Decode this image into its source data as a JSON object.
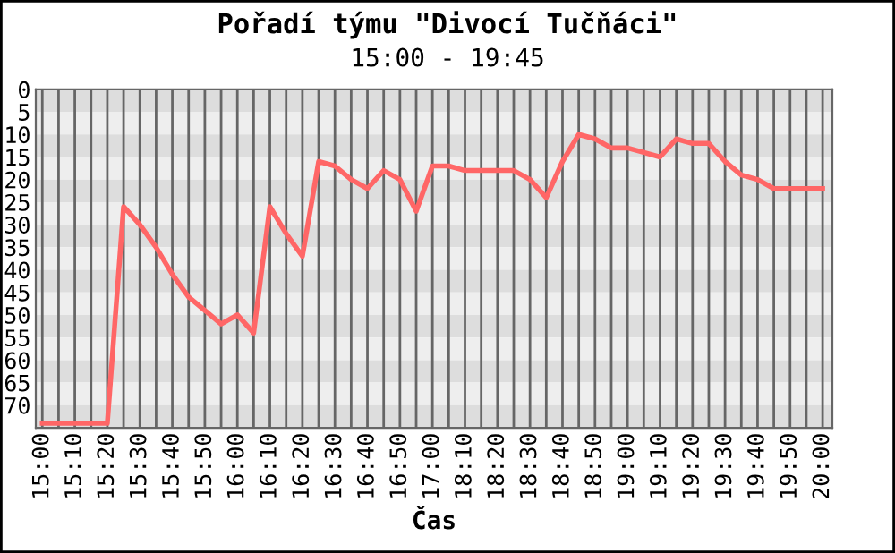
{
  "chart_data": {
    "type": "line",
    "title": "Pořadí týmu \"Divocí Tučňáci\"",
    "subtitle": "15:00 - 19:45",
    "xlabel": "Čas",
    "categories": [
      "15:00",
      null,
      "15:10",
      null,
      "15:20",
      null,
      "15:30",
      null,
      "15:40",
      null,
      "15:50",
      null,
      "16:00",
      null,
      "16:10",
      null,
      "16:20",
      null,
      "16:30",
      null,
      "16:40",
      null,
      "16:50",
      null,
      "17:00",
      null,
      "18:10",
      null,
      "18:20",
      null,
      "18:30",
      null,
      "18:40",
      null,
      "18:50",
      null,
      "19:00",
      null,
      "19:10",
      null,
      "19:20",
      null,
      "19:30",
      null,
      "19:40",
      null,
      "19:50",
      null,
      "20:00"
    ],
    "series": [
      {
        "color": "#ff6666",
        "values": [
          74,
          74,
          74,
          74,
          74,
          26,
          30,
          35,
          41,
          46,
          49,
          52,
          50,
          54,
          26,
          32,
          37,
          16,
          17,
          20,
          22,
          18,
          20,
          27,
          17,
          17,
          18,
          18,
          18,
          18,
          20,
          24,
          16,
          10,
          11,
          13,
          13,
          14,
          15,
          11,
          12,
          12,
          16,
          19,
          20,
          22,
          22,
          22,
          22
        ]
      }
    ],
    "ylim": [
      75,
      0
    ],
    "yticks": [
      0,
      5,
      10,
      15,
      20,
      25,
      30,
      35,
      40,
      45,
      50,
      55,
      60,
      65,
      70
    ],
    "grid": true,
    "marker": "none",
    "line_style": "solid"
  }
}
